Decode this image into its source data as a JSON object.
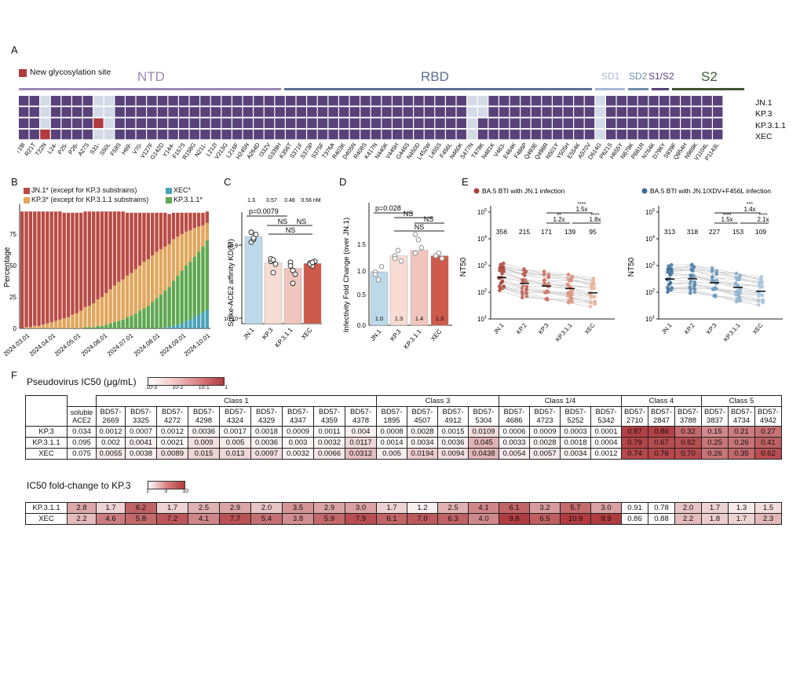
{
  "panels": {
    "a": "A",
    "b": "B",
    "c": "C",
    "d": "D",
    "e": "E",
    "f": "F"
  },
  "colors": {
    "purple": "#59427a",
    "gray": "#d4dae6",
    "red": "#b03a3e",
    "ntd": "#9b87b6",
    "rbd": "#5d6e96",
    "sd1": "#a9b8d6",
    "sd2": "#6f8fa8",
    "s1s2": "#5a3f7e",
    "s2": "#3d5731",
    "jn1": "#b94b45",
    "kp3": "#e0a65c",
    "xec": "#4aa3b8",
    "kp311": "#5fa851"
  },
  "panelA": {
    "legend": "New glycosylation site",
    "domains": [
      {
        "label": "NTD"
      },
      {
        "label": "RBD"
      },
      {
        "label": "SD1"
      },
      {
        "label": "SD2"
      },
      {
        "label": "S1/S2"
      },
      {
        "label": "S2"
      }
    ],
    "rows": [
      "JN.1",
      "KP.3",
      "KP.3.1.1",
      "XEC"
    ],
    "mutations": [
      "T19I",
      "R21T",
      "T22N",
      "L24-",
      "P25-",
      "P26-",
      "A27S",
      "S31-",
      "S50L",
      "F59S",
      "H69-",
      "V70-",
      "V127F",
      "G142D",
      "Y144-",
      "F157S",
      "R158G",
      "N211-",
      "L212I",
      "V213G",
      "L216F",
      "H245N",
      "A264D",
      "I332V",
      "G339H",
      "K356T",
      "S371F",
      "S373P",
      "S375F",
      "T376A",
      "R403K",
      "D405N",
      "R408S",
      "K417N",
      "N440K",
      "V445H",
      "G446S",
      "N450D",
      "L452W",
      "L455S",
      "F456L",
      "N460K",
      "S477N",
      "T478K",
      "N481K",
      "V483-",
      "E484K",
      "F486P",
      "Q493E",
      "Q498R",
      "N501Y",
      "Y505H",
      "E554K",
      "A570V",
      "D614G",
      "P621S",
      "H655Y",
      "N679K",
      "P681R",
      "N764K",
      "D796Y",
      "S939F",
      "Q954H",
      "N969K",
      "V1104L",
      "P1143L"
    ],
    "gray_cols": [
      {
        "row": 0,
        "cols": [
          2,
          7,
          8,
          42,
          43,
          54,
          67
        ]
      },
      {
        "row": 1,
        "cols": [
          2,
          7,
          8,
          42,
          43,
          54,
          67
        ]
      },
      {
        "row": 2,
        "cols": [
          2,
          8,
          42,
          54,
          67
        ]
      },
      {
        "row": 3,
        "cols": [
          2,
          7,
          8,
          42,
          54,
          67
        ]
      }
    ],
    "red_cells": [
      {
        "row": 3,
        "col": 2
      },
      {
        "row": 2,
        "col": 7
      }
    ]
  },
  "panelB": {
    "legend": [
      "JN.1* (except for KP.3 substrains)",
      "KP.3* (except for KP.3.1.1 substrains)",
      "XEC*",
      "KP.3.1.1*"
    ],
    "ylabel": "Percentage",
    "yticks": [
      "0",
      "25",
      "50",
      "75"
    ],
    "xticks": [
      "2024.03.01",
      "2024.04.01",
      "2024.05.01",
      "2024.06.01",
      "2024.07.01",
      "2024.08.01",
      "2024.09.01",
      "2024.10.01"
    ],
    "chart_data": {
      "type": "bar",
      "stacked": true,
      "series": [
        {
          "name": "XEC*",
          "values": [
            0,
            0,
            0,
            0,
            0,
            0,
            0,
            0,
            0,
            0,
            0,
            0,
            0,
            0,
            0,
            0,
            0,
            0,
            0,
            0,
            0,
            0,
            0,
            0,
            0,
            0,
            0,
            0,
            0,
            0,
            0,
            0,
            0,
            0,
            1,
            1,
            2,
            3,
            4,
            6,
            7,
            9,
            11,
            13,
            15
          ]
        },
        {
          "name": "KP.3.1.1*",
          "values": [
            0,
            0,
            0,
            0,
            0,
            0,
            0,
            0,
            0,
            0,
            0,
            0,
            0,
            0,
            0,
            1,
            1,
            1,
            2,
            2,
            3,
            4,
            5,
            6,
            7,
            9,
            10,
            12,
            14,
            16,
            18,
            21,
            24,
            27,
            29,
            32,
            36,
            39,
            42,
            44,
            46,
            48,
            50,
            52,
            55
          ]
        },
        {
          "name": "KP.3*",
          "values": [
            0,
            1,
            1,
            2,
            2,
            3,
            4,
            5,
            6,
            7,
            8,
            9,
            11,
            12,
            14,
            16,
            17,
            19,
            21,
            23,
            25,
            27,
            29,
            31,
            32,
            33,
            34,
            35,
            36,
            37,
            37,
            37,
            37,
            36,
            35,
            34,
            33,
            31,
            29,
            27,
            25,
            23,
            20,
            17,
            14
          ]
        },
        {
          "name": "JN.1*",
          "values": [
            93,
            92,
            92,
            91,
            91,
            90,
            89,
            88,
            87,
            86,
            84,
            83,
            81,
            80,
            78,
            76,
            75,
            73,
            70,
            68,
            65,
            62,
            59,
            56,
            54,
            50,
            48,
            45,
            42,
            39,
            37,
            34,
            31,
            29,
            27,
            24,
            21,
            19,
            17,
            15,
            14,
            12,
            11,
            10,
            9
          ]
        }
      ],
      "ylim": [
        0,
        100
      ]
    }
  },
  "panelC": {
    "ylabel": "Spike-ACE2 affinity KD(M)",
    "yticks": [
      "10-9",
      "10-10"
    ],
    "values_label": [
      "1.3",
      "0.57",
      "0.48",
      "0.56 nM"
    ],
    "p": "p=0.0079",
    "ns": [
      "NS",
      "NS",
      "NS"
    ],
    "categories": [
      "JN.1",
      "KP.3",
      "KP.3.1.1",
      "XEC"
    ],
    "chart_data": {
      "type": "bar",
      "categories": [
        "JN.1",
        "KP.3",
        "KP.3.1.1",
        "XEC"
      ],
      "values": [
        1.3,
        0.57,
        0.48,
        0.56
      ],
      "unit": "nM"
    }
  },
  "panelD": {
    "ylabel": "Infectivity Fold Change (over JN.1)",
    "yticks": [
      "0.0",
      "0.5",
      "1.0",
      "1.5"
    ],
    "p": "p=0.028",
    "ns": [
      "NS",
      "NS",
      "NS"
    ],
    "categories": [
      "JN.1",
      "KP.3",
      "KP.3.1.1",
      "XEC"
    ],
    "bar_labels": [
      "1.0",
      "1.3",
      "1.4",
      "1.3"
    ],
    "chart_data": {
      "type": "bar",
      "categories": [
        "JN.1",
        "KP.3",
        "KP.3.1.1",
        "XEC"
      ],
      "values": [
        1.0,
        1.3,
        1.4,
        1.3
      ],
      "ylim": [
        0,
        2.0
      ]
    }
  },
  "panelE": {
    "left": {
      "title": "BA.5 BTI with JN.1 infection",
      "gmt": [
        "356",
        "215",
        "171",
        "139",
        "95"
      ],
      "stars": [
        "****",
        "**",
        "****"
      ],
      "folds": [
        "1.5x",
        "1.2x",
        "1.8x"
      ]
    },
    "right": {
      "title": "BA.5 BTI with JN.1/XDV+F456L infection",
      "gmt": [
        "313",
        "318",
        "227",
        "153",
        "109"
      ],
      "stars": [
        "***",
        "****",
        "****"
      ],
      "folds": [
        "1.4x",
        "1.5x",
        "2.1x"
      ]
    },
    "ylabel": "NT50",
    "yticks": [
      "10^5",
      "10^4",
      "10^3",
      "10^2",
      "10^1"
    ],
    "categories": [
      "JN.1",
      "KP.2",
      "KP.3",
      "KP.3.1.1",
      "XEC"
    ],
    "chart_data": [
      {
        "type": "scatter",
        "title": "BA.5 BTI with JN.1 infection",
        "categories": [
          "JN.1",
          "KP.2",
          "KP.3",
          "KP.3.1.1",
          "XEC"
        ],
        "values": [
          356,
          215,
          171,
          139,
          95
        ]
      },
      {
        "type": "scatter",
        "title": "BA.5 BTI with JN.1/XDV+F456L infection",
        "categories": [
          "JN.1",
          "KP.2",
          "KP.3",
          "KP.3.1.1",
          "XEC"
        ],
        "values": [
          313,
          318,
          227,
          153,
          109
        ]
      }
    ]
  },
  "panelF": {
    "title": "Pseudovirus IC50 (μg/mL)",
    "scale": [
      "10-3",
      "10-2",
      "10-1",
      "1"
    ],
    "classes": [
      {
        "label": "Class 1",
        "span": 9
      },
      {
        "label": "Class 3",
        "span": 4
      },
      {
        "label": "Class 1/4",
        "span": 4
      },
      {
        "label": "Class 4",
        "span": 3
      },
      {
        "label": "Class 5",
        "span": 3
      }
    ],
    "ace2": "soluble ACE2",
    "antibodies": [
      "BD57-2669",
      "BD57-3325",
      "BD57-4272",
      "BD57-4298",
      "BD57-4324",
      "BD57-4329",
      "BD57-4347",
      "BD57-4359",
      "BD57-4378",
      "BD57-1895",
      "BD57-4507",
      "BD57-4912",
      "BD57-5304",
      "BD57-4686",
      "BD57-4723",
      "BD57-5252",
      "BD57-5342",
      "BD57-2710",
      "BD57-2847",
      "BD57-3788",
      "BD57-3837",
      "BD57-4734",
      "BD57-4942"
    ],
    "ic50": [
      {
        "name": "KP.3",
        "vals": [
          "0.034",
          "0.0012",
          "0.0007",
          "0.0012",
          "0.0036",
          "0.0017",
          "0.0018",
          "0.0009",
          "0.0011",
          "0.004",
          "0.0008",
          "0.0028",
          "0.0015",
          "0.0109",
          "0.0006",
          "0.0009",
          "0.0003",
          "0.0001",
          "0.87",
          "0.86",
          "0.32",
          "0.15",
          "0.21",
          "0.27"
        ]
      },
      {
        "name": "KP.3.1.1",
        "vals": [
          "0.095",
          "0.002",
          "0.0041",
          "0.0021",
          "0.009",
          "0.005",
          "0.0036",
          "0.003",
          "0.0032",
          "0.0117",
          "0.0014",
          "0.0034",
          "0.0036",
          "0.045",
          "0.0033",
          "0.0028",
          "0.0018",
          "0.0004",
          "0.79",
          "0.67",
          "0.62",
          "0.25",
          "0.26",
          "0.41"
        ]
      },
      {
        "name": "XEC",
        "vals": [
          "0.075",
          "0.0055",
          "0.0038",
          "0.0089",
          "0.015",
          "0.013",
          "0.0097",
          "0.0032",
          "0.0066",
          "0.0312",
          "0.005",
          "0.0194",
          "0.0094",
          "0.0438",
          "0.0054",
          "0.0057",
          "0.0034",
          "0.0012",
          "0.74",
          "0.76",
          "0.70",
          "0.26",
          "0.35",
          "0.62"
        ]
      }
    ],
    "fold_title": "IC50 fold-change to KP.3",
    "fold_scale": [
      "1",
      "3",
      "10"
    ],
    "fold": [
      {
        "name": "KP.3.1.1",
        "vals": [
          "2.8",
          "1.7",
          "6.2",
          "1.7",
          "2.5",
          "2.9",
          "2.0",
          "3.5",
          "2.9",
          "3.0",
          "1.7",
          "1.2",
          "2.5",
          "4.1",
          "6.1",
          "3.2",
          "5.7",
          "3.0",
          "0.91",
          "0.78",
          "2.0",
          "1.7",
          "1.3",
          "1.5"
        ]
      },
      {
        "name": "XEC",
        "vals": [
          "2.2",
          "4.6",
          "5.8",
          "7.2",
          "4.1",
          "7.7",
          "5.4",
          "3.8",
          "5.9",
          "7.9",
          "6.1",
          "7.0",
          "6.3",
          "4.0",
          "9.8",
          "6.5",
          "10.9",
          "9.9",
          "0.86",
          "0.88",
          "2.2",
          "1.8",
          "1.7",
          "2.3"
        ]
      }
    ]
  }
}
